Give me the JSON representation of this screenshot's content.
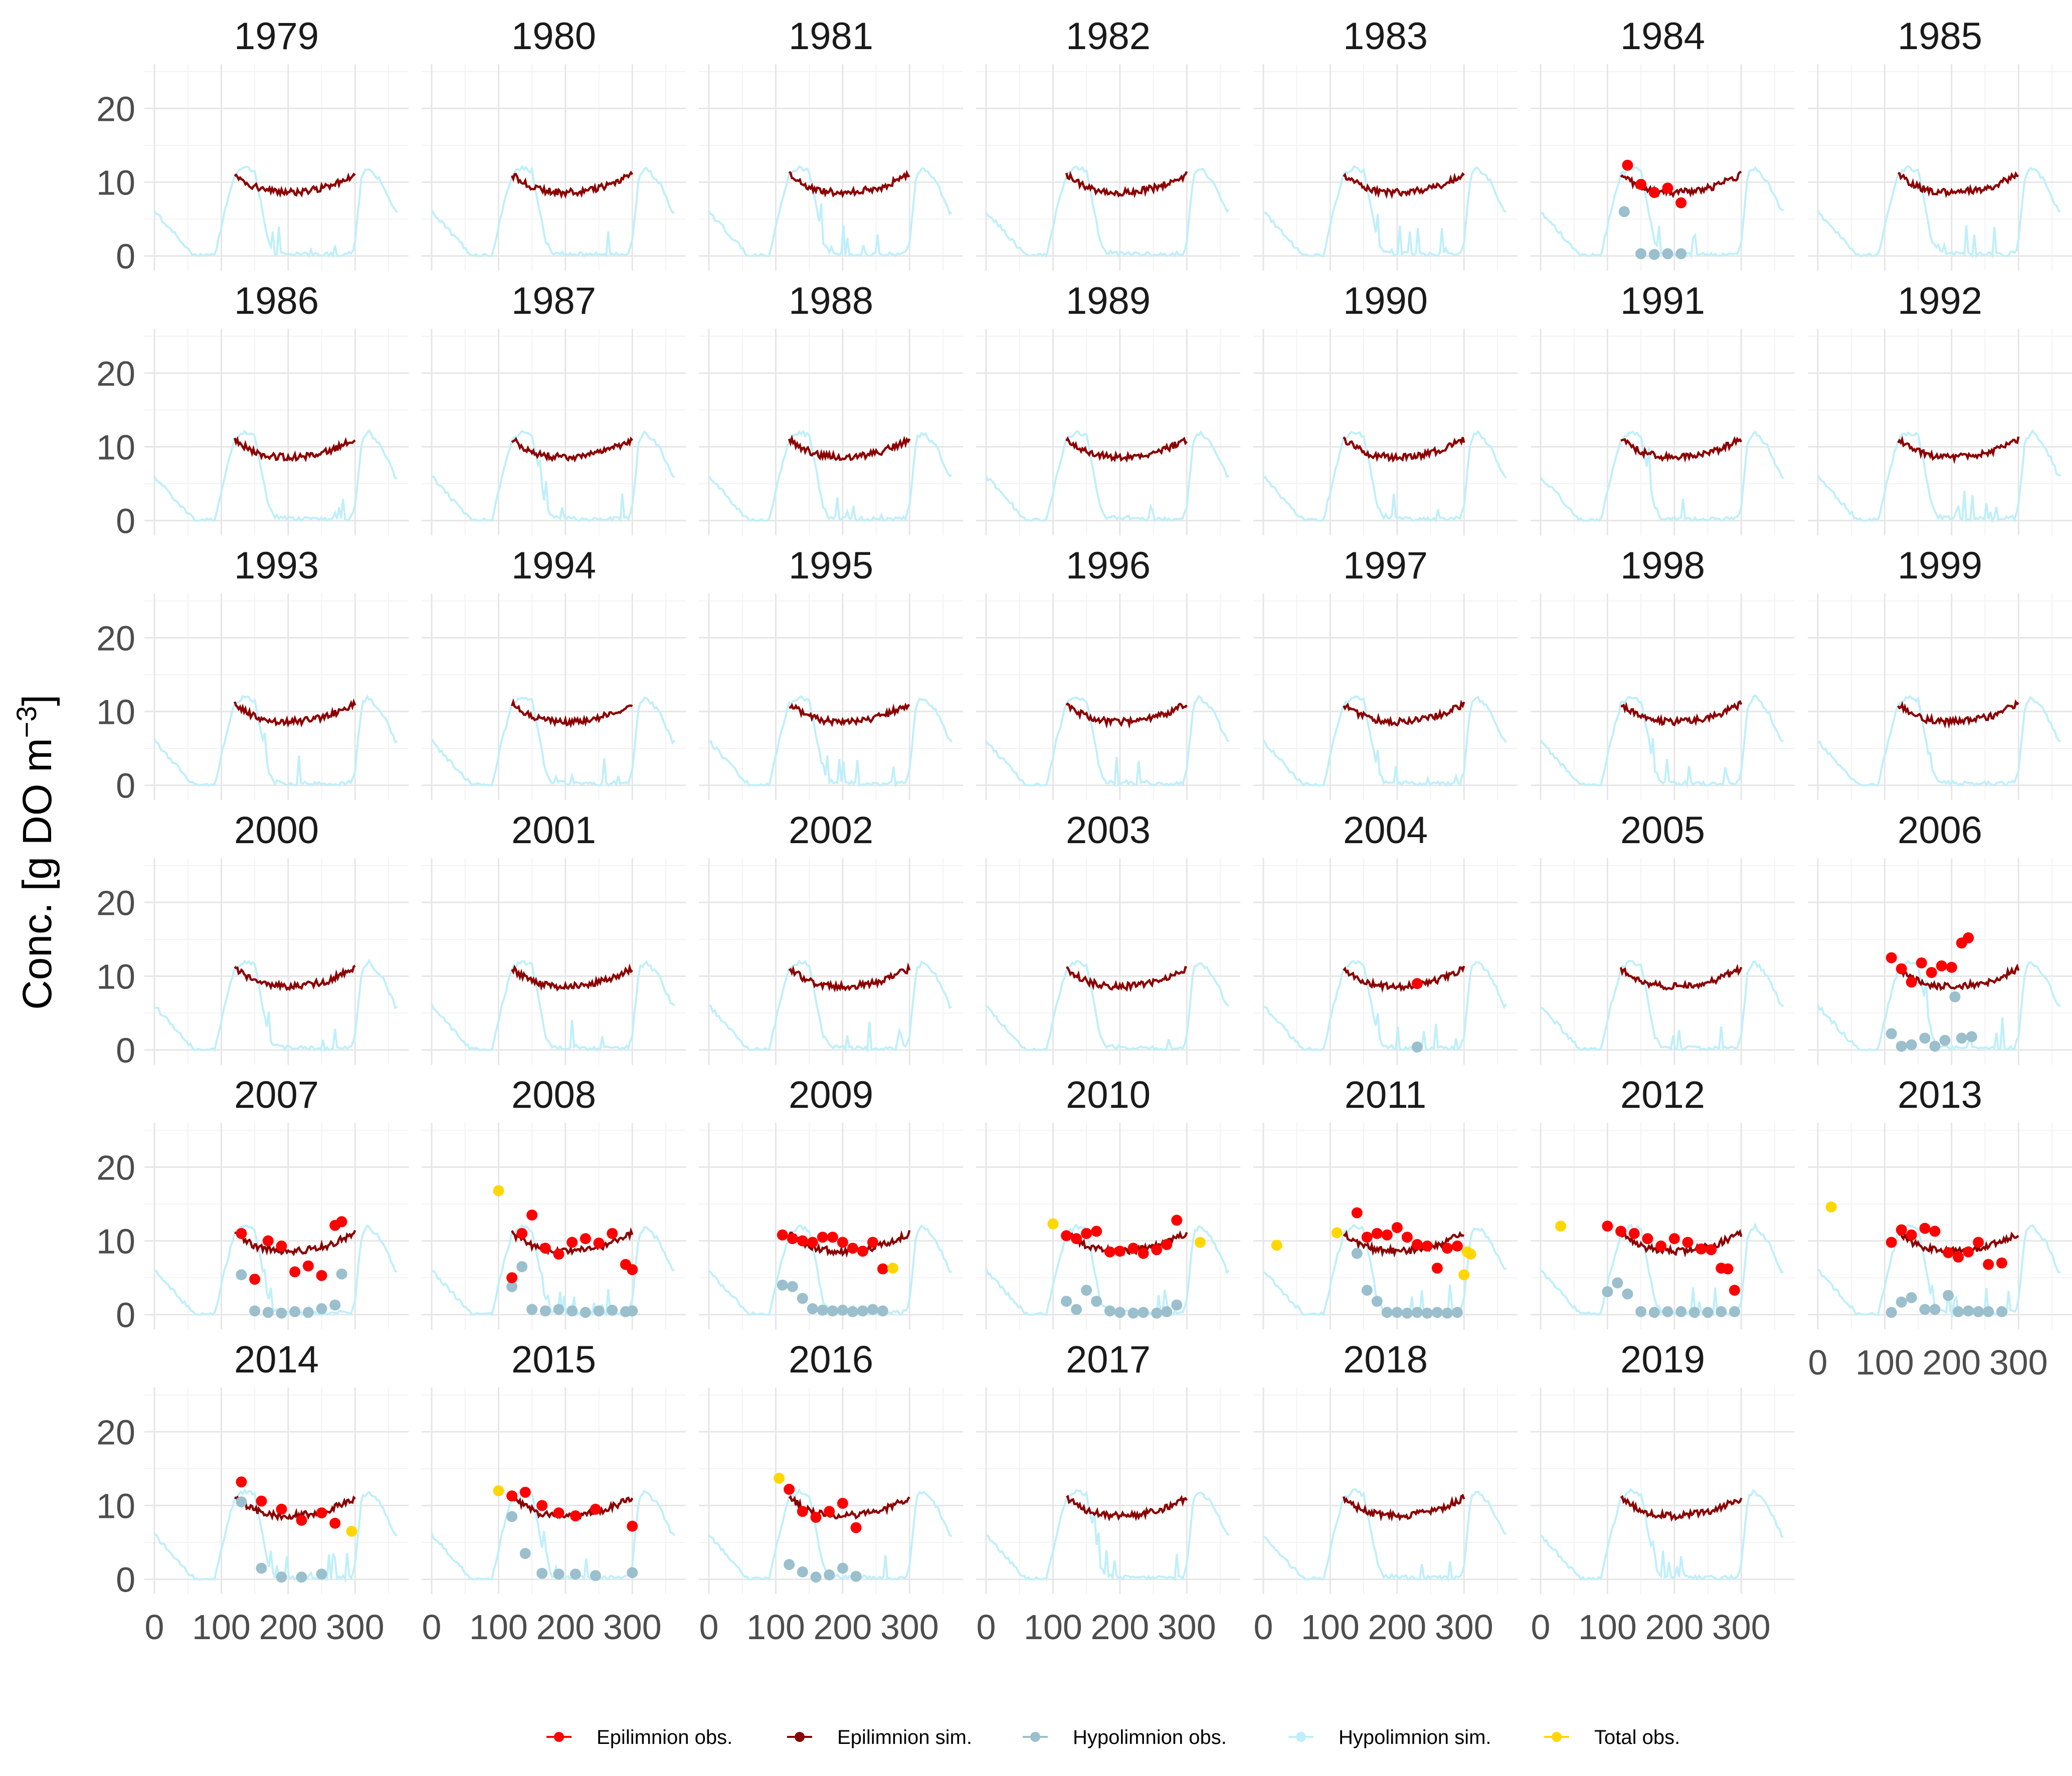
{
  "chart_data": {
    "type": "line",
    "facet_by": "year",
    "years": [
      "1979",
      "1980",
      "1981",
      "1982",
      "1983",
      "1984",
      "1985",
      "1986",
      "1987",
      "1988",
      "1989",
      "1990",
      "1991",
      "1992",
      "1993",
      "1994",
      "1995",
      "1996",
      "1997",
      "1998",
      "1999",
      "2000",
      "2001",
      "2002",
      "2003",
      "2004",
      "2005",
      "2006",
      "2007",
      "2008",
      "2009",
      "2010",
      "2011",
      "2012",
      "2013",
      "2014",
      "2015",
      "2016",
      "2017",
      "2018",
      "2019"
    ],
    "ylabel": "Conc. [g DO m",
    "ylabel_superscript": "−3",
    "ylabel_close": "]",
    "xlabel": "",
    "ylim": [
      -2,
      26
    ],
    "xlim": [
      -15,
      380
    ],
    "y_ticks": [
      0,
      10,
      20
    ],
    "x_ticks": [
      0,
      100,
      200,
      300
    ],
    "x_tick_labels": [
      "0",
      "100",
      "200",
      "300"
    ],
    "grid": true,
    "legend_position": "bottom",
    "legend": [
      {
        "label": "Epilimnion obs.",
        "color": "#ff0000",
        "kind": "point"
      },
      {
        "label": "Epilimnion sim.",
        "color": "#8b0000",
        "kind": "line"
      },
      {
        "label": "Hypolimnion obs.",
        "color": "#9bbfcc",
        "kind": "point"
      },
      {
        "label": "Hypolimnion sim.",
        "color": "#bfeffa",
        "kind": "line"
      },
      {
        "label": "Total obs.",
        "color": "#ffd700",
        "kind": "point"
      }
    ],
    "colors": {
      "epi_obs": "#ff0000",
      "epi_sim": "#8b0000",
      "hypo_obs": "#9bbfcc",
      "hypo_sim": "#bfeffa",
      "total_obs": "#ffd700",
      "grid_major": "#e6e6e6",
      "grid_minor": "#f3f3f3"
    },
    "series_shape": {
      "epi_sim": {
        "x": [
          120,
          140,
          160,
          180,
          200,
          220,
          240,
          260,
          280,
          300
        ],
        "y": [
          11,
          9.8,
          9,
          8.7,
          8.6,
          8.7,
          9,
          9.4,
          10.2,
          11
        ]
      },
      "hypo_sim": {
        "x": [
          0,
          30,
          60,
          90,
          105,
          120,
          135,
          150,
          160,
          170,
          180,
          200,
          240,
          280,
          295,
          300,
          310,
          320,
          340,
          360
        ],
        "y": [
          6,
          3,
          0,
          0,
          6,
          11,
          12,
          11.5,
          7,
          2,
          0.5,
          0.3,
          0.2,
          0.2,
          0.4,
          2,
          11,
          12,
          10,
          6
        ]
      }
    },
    "observations": {
      "1984": {
        "epi": [
          [
            130,
            12.3
          ],
          [
            150,
            9.7
          ],
          [
            170,
            8.6
          ],
          [
            190,
            9.2
          ],
          [
            210,
            7.2
          ]
        ],
        "hypo": [
          [
            125,
            6
          ],
          [
            150,
            0.3
          ],
          [
            170,
            0.2
          ],
          [
            190,
            0.3
          ],
          [
            210,
            0.3
          ]
        ],
        "total": []
      },
      "2004": {
        "epi": [
          [
            230,
            9
          ]
        ],
        "hypo": [
          [
            230,
            0.4
          ]
        ],
        "total": []
      },
      "2006": {
        "epi": [
          [
            110,
            12.5
          ],
          [
            125,
            11
          ],
          [
            140,
            9.2
          ],
          [
            155,
            11.8
          ],
          [
            170,
            10.5
          ],
          [
            185,
            11.4
          ],
          [
            200,
            11.2
          ],
          [
            215,
            14.5
          ],
          [
            225,
            15.2
          ]
        ],
        "hypo": [
          [
            110,
            2.2
          ],
          [
            125,
            0.5
          ],
          [
            140,
            0.7
          ],
          [
            160,
            1.6
          ],
          [
            175,
            0.5
          ],
          [
            190,
            1.3
          ],
          [
            205,
            7.2
          ],
          [
            215,
            1.6
          ],
          [
            230,
            1.8
          ]
        ],
        "total": []
      },
      "2007": {
        "epi": [
          [
            130,
            11
          ],
          [
            150,
            4.8
          ],
          [
            170,
            10
          ],
          [
            190,
            9.3
          ],
          [
            210,
            5.8
          ],
          [
            230,
            6.6
          ],
          [
            250,
            5.3
          ],
          [
            270,
            12.1
          ],
          [
            280,
            12.6
          ]
        ],
        "hypo": [
          [
            130,
            5.4
          ],
          [
            150,
            0.5
          ],
          [
            170,
            0.3
          ],
          [
            190,
            0.2
          ],
          [
            210,
            0.4
          ],
          [
            230,
            0.3
          ],
          [
            250,
            0.8
          ],
          [
            270,
            1.3
          ],
          [
            280,
            5.5
          ]
        ],
        "total": []
      },
      "2008": {
        "epi": [
          [
            120,
            5
          ],
          [
            135,
            11
          ],
          [
            150,
            13.5
          ],
          [
            170,
            9
          ],
          [
            190,
            8.2
          ],
          [
            210,
            9.8
          ],
          [
            230,
            10.3
          ],
          [
            250,
            9.7
          ],
          [
            270,
            11
          ],
          [
            290,
            6.8
          ],
          [
            300,
            6.1
          ]
        ],
        "hypo": [
          [
            120,
            3.8
          ],
          [
            135,
            6.5
          ],
          [
            150,
            0.7
          ],
          [
            170,
            0.5
          ],
          [
            190,
            0.7
          ],
          [
            210,
            0.5
          ],
          [
            230,
            0.3
          ],
          [
            250,
            0.5
          ],
          [
            270,
            0.6
          ],
          [
            290,
            0.4
          ],
          [
            300,
            0.5
          ]
        ],
        "total": [
          [
            100,
            16.8
          ]
        ]
      },
      "2009": {
        "epi": [
          [
            110,
            10.8
          ],
          [
            125,
            10.3
          ],
          [
            140,
            10
          ],
          [
            155,
            9.8
          ],
          [
            170,
            10.5
          ],
          [
            185,
            10.5
          ],
          [
            200,
            9.8
          ],
          [
            215,
            9
          ],
          [
            230,
            8.6
          ],
          [
            245,
            9.8
          ],
          [
            260,
            6.2
          ]
        ],
        "hypo": [
          [
            110,
            4
          ],
          [
            125,
            3.8
          ],
          [
            140,
            2.2
          ],
          [
            155,
            0.8
          ],
          [
            170,
            0.6
          ],
          [
            185,
            0.5
          ],
          [
            200,
            0.6
          ],
          [
            215,
            0.4
          ],
          [
            230,
            0.5
          ],
          [
            245,
            0.7
          ],
          [
            260,
            0.5
          ]
        ],
        "total": [
          [
            275,
            6.3
          ]
        ]
      },
      "2010": {
        "epi": [
          [
            120,
            10.7
          ],
          [
            135,
            10.3
          ],
          [
            150,
            11
          ],
          [
            165,
            11.3
          ],
          [
            185,
            8.5
          ],
          [
            200,
            8.6
          ],
          [
            220,
            9
          ],
          [
            235,
            8.3
          ],
          [
            255,
            8.8
          ],
          [
            270,
            9.5
          ],
          [
            285,
            12.8
          ]
        ],
        "hypo": [
          [
            120,
            1.8
          ],
          [
            135,
            0.7
          ],
          [
            150,
            3.3
          ],
          [
            165,
            1.8
          ],
          [
            185,
            0.5
          ],
          [
            200,
            0.3
          ],
          [
            220,
            0.2
          ],
          [
            235,
            0.3
          ],
          [
            255,
            0.2
          ],
          [
            270,
            0.4
          ],
          [
            285,
            1.3
          ]
        ],
        "total": [
          [
            100,
            12.3
          ],
          [
            320,
            9.8
          ]
        ]
      },
      "2011": {
        "epi": [
          [
            140,
            13.8
          ],
          [
            155,
            10.5
          ],
          [
            170,
            11
          ],
          [
            185,
            10.8
          ],
          [
            200,
            11.8
          ],
          [
            215,
            10.5
          ],
          [
            230,
            9.5
          ],
          [
            245,
            9.3
          ],
          [
            260,
            6.3
          ],
          [
            275,
            9
          ],
          [
            290,
            9.3
          ]
        ],
        "hypo": [
          [
            140,
            8.3
          ],
          [
            155,
            3.3
          ],
          [
            170,
            1.8
          ],
          [
            185,
            0.3
          ],
          [
            200,
            0.3
          ],
          [
            215,
            0.2
          ],
          [
            230,
            0.3
          ],
          [
            245,
            0.2
          ],
          [
            260,
            0.3
          ],
          [
            275,
            0.2
          ],
          [
            290,
            0.3
          ]
        ],
        "total": [
          [
            20,
            9.4
          ],
          [
            110,
            11.1
          ],
          [
            300,
            5.4
          ],
          [
            305,
            8.5
          ],
          [
            310,
            8.2
          ]
        ]
      },
      "2012": {
        "epi": [
          [
            100,
            12
          ],
          [
            120,
            11.3
          ],
          [
            140,
            11
          ],
          [
            160,
            10.3
          ],
          [
            180,
            9.3
          ],
          [
            200,
            10.3
          ],
          [
            220,
            9.8
          ],
          [
            240,
            8.9
          ],
          [
            255,
            8.8
          ],
          [
            270,
            6.3
          ],
          [
            280,
            6.2
          ],
          [
            290,
            3.3
          ]
        ],
        "hypo": [
          [
            100,
            3.1
          ],
          [
            115,
            4.3
          ],
          [
            130,
            2.8
          ],
          [
            150,
            0.4
          ],
          [
            170,
            0.3
          ],
          [
            190,
            0.4
          ],
          [
            210,
            0.4
          ],
          [
            230,
            0.3
          ],
          [
            250,
            0.3
          ],
          [
            270,
            0.4
          ],
          [
            290,
            0.4
          ]
        ],
        "total": [
          [
            30,
            12
          ]
        ]
      },
      "2013": {
        "epi": [
          [
            110,
            9.8
          ],
          [
            125,
            11.5
          ],
          [
            140,
            10.8
          ],
          [
            160,
            11.7
          ],
          [
            175,
            11.3
          ],
          [
            195,
            8.4
          ],
          [
            210,
            7.8
          ],
          [
            225,
            8.5
          ],
          [
            240,
            9.8
          ],
          [
            255,
            6.8
          ],
          [
            275,
            7
          ]
        ],
        "hypo": [
          [
            110,
            0.3
          ],
          [
            125,
            1.7
          ],
          [
            140,
            2.3
          ],
          [
            160,
            0.7
          ],
          [
            175,
            0.7
          ],
          [
            195,
            2.6
          ],
          [
            210,
            0.4
          ],
          [
            225,
            0.5
          ],
          [
            240,
            0.4
          ],
          [
            255,
            0.4
          ],
          [
            275,
            0.4
          ]
        ],
        "total": [
          [
            20,
            14.6
          ]
        ]
      },
      "2014": {
        "epi": [
          [
            130,
            13.2
          ],
          [
            160,
            10.6
          ],
          [
            190,
            9.5
          ],
          [
            220,
            8
          ],
          [
            250,
            9
          ],
          [
            270,
            7.6
          ]
        ],
        "hypo": [
          [
            130,
            10.5
          ],
          [
            160,
            1.5
          ],
          [
            190,
            0.3
          ],
          [
            220,
            0.3
          ],
          [
            250,
            0.7
          ]
        ],
        "total": [
          [
            295,
            6.5
          ]
        ]
      },
      "2015": {
        "epi": [
          [
            120,
            11.3
          ],
          [
            140,
            11.8
          ],
          [
            165,
            10
          ],
          [
            190,
            9
          ],
          [
            215,
            8.6
          ],
          [
            245,
            9.5
          ],
          [
            300,
            7.2
          ]
        ],
        "hypo": [
          [
            120,
            8.5
          ],
          [
            140,
            3.5
          ],
          [
            165,
            0.8
          ],
          [
            190,
            0.7
          ],
          [
            215,
            0.7
          ],
          [
            245,
            0.5
          ],
          [
            300,
            0.9
          ]
        ],
        "total": [
          [
            100,
            12
          ]
        ]
      },
      "2016": {
        "epi": [
          [
            120,
            12.2
          ],
          [
            140,
            9.2
          ],
          [
            160,
            8.4
          ],
          [
            180,
            9.2
          ],
          [
            200,
            10.3
          ],
          [
            220,
            7
          ]
        ],
        "hypo": [
          [
            120,
            2
          ],
          [
            140,
            1
          ],
          [
            160,
            0.3
          ],
          [
            180,
            0.6
          ],
          [
            200,
            1.5
          ],
          [
            220,
            0.4
          ]
        ],
        "total": [
          [
            105,
            13.7
          ]
        ]
      }
    }
  }
}
